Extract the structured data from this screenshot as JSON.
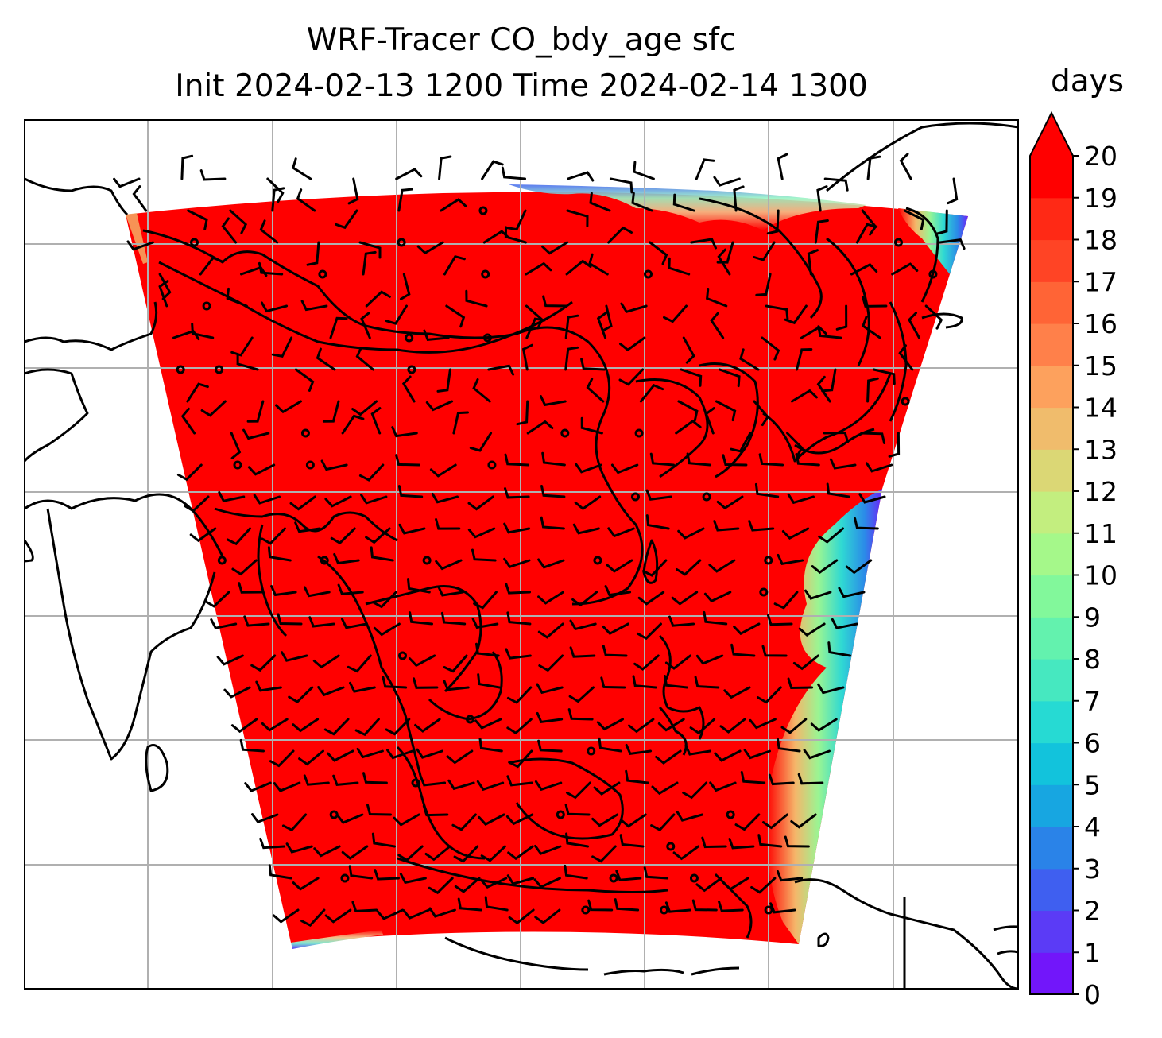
{
  "figure": {
    "title_line1": "WRF-Tracer CO_bdy_age sfc",
    "title_line2": "Init 2024-02-13 1200 Time 2024-02-14 1300"
  },
  "colorbar": {
    "label": "days",
    "ticks": [
      "0",
      "1",
      "2",
      "3",
      "4",
      "5",
      "6",
      "7",
      "8",
      "9",
      "10",
      "11",
      "12",
      "13",
      "14",
      "15",
      "16",
      "17",
      "18",
      "19",
      "20"
    ],
    "extend": "max",
    "colors": [
      "#7216fa",
      "#5b3bf6",
      "#3f5ff0",
      "#2a83e8",
      "#17a6e1",
      "#12c3dc",
      "#26dad3",
      "#46e8c0",
      "#63f2ae",
      "#82f89b",
      "#a5f88a",
      "#c3ee7f",
      "#dbd775",
      "#f0bc6c",
      "#fda15d",
      "#ff804a",
      "#ff6436",
      "#ff4425",
      "#ff2915",
      "#ff0000"
    ],
    "extend_color": "#ff0000"
  },
  "map": {
    "field_color": "#ff0000",
    "background": "#ffffff",
    "coastline_color": "#000000",
    "gridline_color": "#b0b0b0",
    "wind_barbs": "black",
    "edge_gradient": [
      "#ff0000",
      "#f5b66a",
      "#9af593",
      "#2fd9d3",
      "#2b8ae8",
      "#6a24f8"
    ]
  }
}
